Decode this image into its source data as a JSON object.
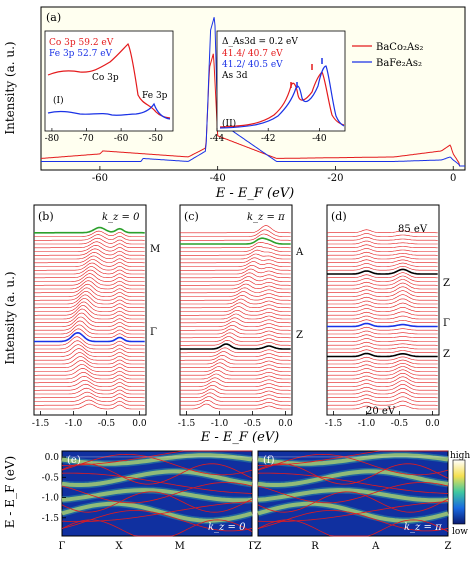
{
  "figure": {
    "x_axis_label": "E - E_F (eV)",
    "y_axis_label_top": "Intensity (a. u.)",
    "y_axis_label_mid": "Intensity (a. u.)",
    "y_axis_label_bottom": "E - E_F (eV)"
  },
  "colors": {
    "red": "#e41a1c",
    "blue": "#1a32e6",
    "green": "#2ca02c",
    "black": "#000000",
    "panel_a_bg": "#fffff0",
    "map_bg": "#1030a0"
  },
  "chart_data": [
    {
      "panel": "(a)",
      "type": "line",
      "xlabel": "E - E_F (eV)",
      "ylabel": "Intensity (a. u.)",
      "xlim": [
        -70,
        2
      ],
      "xticks": [
        -60,
        -40,
        -20,
        0
      ],
      "xticklabels": [
        "-60",
        "-40",
        "-20",
        "0"
      ],
      "series": [
        {
          "name": "BaCo2As2",
          "color": "red",
          "x": [
            -70,
            -60,
            -59.5,
            -45,
            -42,
            -41.4,
            -40.7,
            -40,
            -30,
            -10,
            -2,
            -0.5,
            0,
            1
          ],
          "y": [
            0.05,
            0.08,
            0.1,
            0.06,
            0.12,
            0.65,
            0.75,
            0.2,
            0.05,
            0.06,
            0.1,
            0.14,
            0.08,
            0.02
          ]
        },
        {
          "name": "BaFe2As2",
          "color": "blue",
          "x": [
            -70,
            -53,
            -52.7,
            -45,
            -42,
            -41.2,
            -40.5,
            -40,
            -30,
            -10,
            -2,
            -0.5,
            0,
            1
          ],
          "y": [
            0.03,
            0.03,
            0.05,
            0.03,
            0.1,
            0.9,
            1.0,
            0.3,
            0.03,
            0.03,
            0.04,
            0.06,
            0.04,
            0.01
          ]
        }
      ],
      "legend": [
        "BaCo2As2",
        "BaFe2As2"
      ],
      "legend_symbols": [
        "BaCo₂As₂",
        "BaFe₂As₂"
      ],
      "insets": [
        {
          "label": "(I)",
          "xlim": [
            -82,
            -45
          ],
          "xticks": [
            -80,
            -70,
            -60,
            -50
          ],
          "text_lines": [
            {
              "text": "Co 3p 59.2 eV",
              "color": "red"
            },
            {
              "text": "Fe 3p 52.7 eV",
              "color": "blue"
            }
          ],
          "annotations": [
            "Co 3p",
            "Fe 3p"
          ]
        },
        {
          "label": "(II)",
          "xlim": [
            -44,
            -39
          ],
          "xticks": [
            -44,
            -42,
            -40
          ],
          "text_lines": [
            {
              "text": "Δ_As3d = 0.2 eV",
              "color": "black"
            },
            {
              "text": "41.4/ 40.7 eV",
              "color": "red"
            },
            {
              "text": "41.2/ 40.5 eV",
              "color": "blue"
            },
            {
              "text": "As 3d",
              "color": "black"
            }
          ]
        }
      ]
    },
    {
      "panel": "(b)",
      "type": "line",
      "title": "k_z = 0",
      "xlim": [
        -1.6,
        0.1
      ],
      "xticks": [
        -1.5,
        -1.0,
        -0.5,
        0.0
      ],
      "xticklabels": [
        "-1.5",
        "-1.0",
        "-0.5",
        "0.0"
      ],
      "labels": [
        "M",
        "Γ"
      ]
    },
    {
      "panel": "(c)",
      "type": "line",
      "title": "k_z = π",
      "xlim": [
        -1.6,
        0.1
      ],
      "xticks": [
        -1.5,
        -1.0,
        -0.5,
        0.0
      ],
      "xticklabels": [
        "-1.5",
        "-1.0",
        "-0.5",
        "0.0"
      ],
      "labels": [
        "A",
        "Z"
      ]
    },
    {
      "panel": "(d)",
      "type": "line",
      "xlim": [
        -1.6,
        0.1
      ],
      "xticks": [
        -1.5,
        -1.0,
        -0.5,
        0.0
      ],
      "xticklabels": [
        "-1.5",
        "-1.0",
        "-0.5",
        "0.0"
      ],
      "labels": [
        "Z",
        "Γ",
        "Z"
      ],
      "annotations": [
        "85 eV",
        "20 eV"
      ]
    },
    {
      "panel": "(e)",
      "type": "heatmap",
      "title": "k_z = 0",
      "ylabel": "E - E_F (eV)",
      "ylim": [
        -1.95,
        0.15
      ],
      "yticks": [
        0.0,
        -0.5,
        -1.0,
        -1.5
      ],
      "yticklabels": [
        "0.0",
        "-0.5",
        "-1.0",
        "-1.5"
      ],
      "k_labels": [
        "Γ",
        "X",
        "M",
        "Γ"
      ]
    },
    {
      "panel": "(f)",
      "type": "heatmap",
      "title": "k_z = π",
      "k_labels": [
        "Z",
        "R",
        "A",
        "Z"
      ],
      "colorbar": {
        "high": "high",
        "low": "low"
      }
    }
  ]
}
